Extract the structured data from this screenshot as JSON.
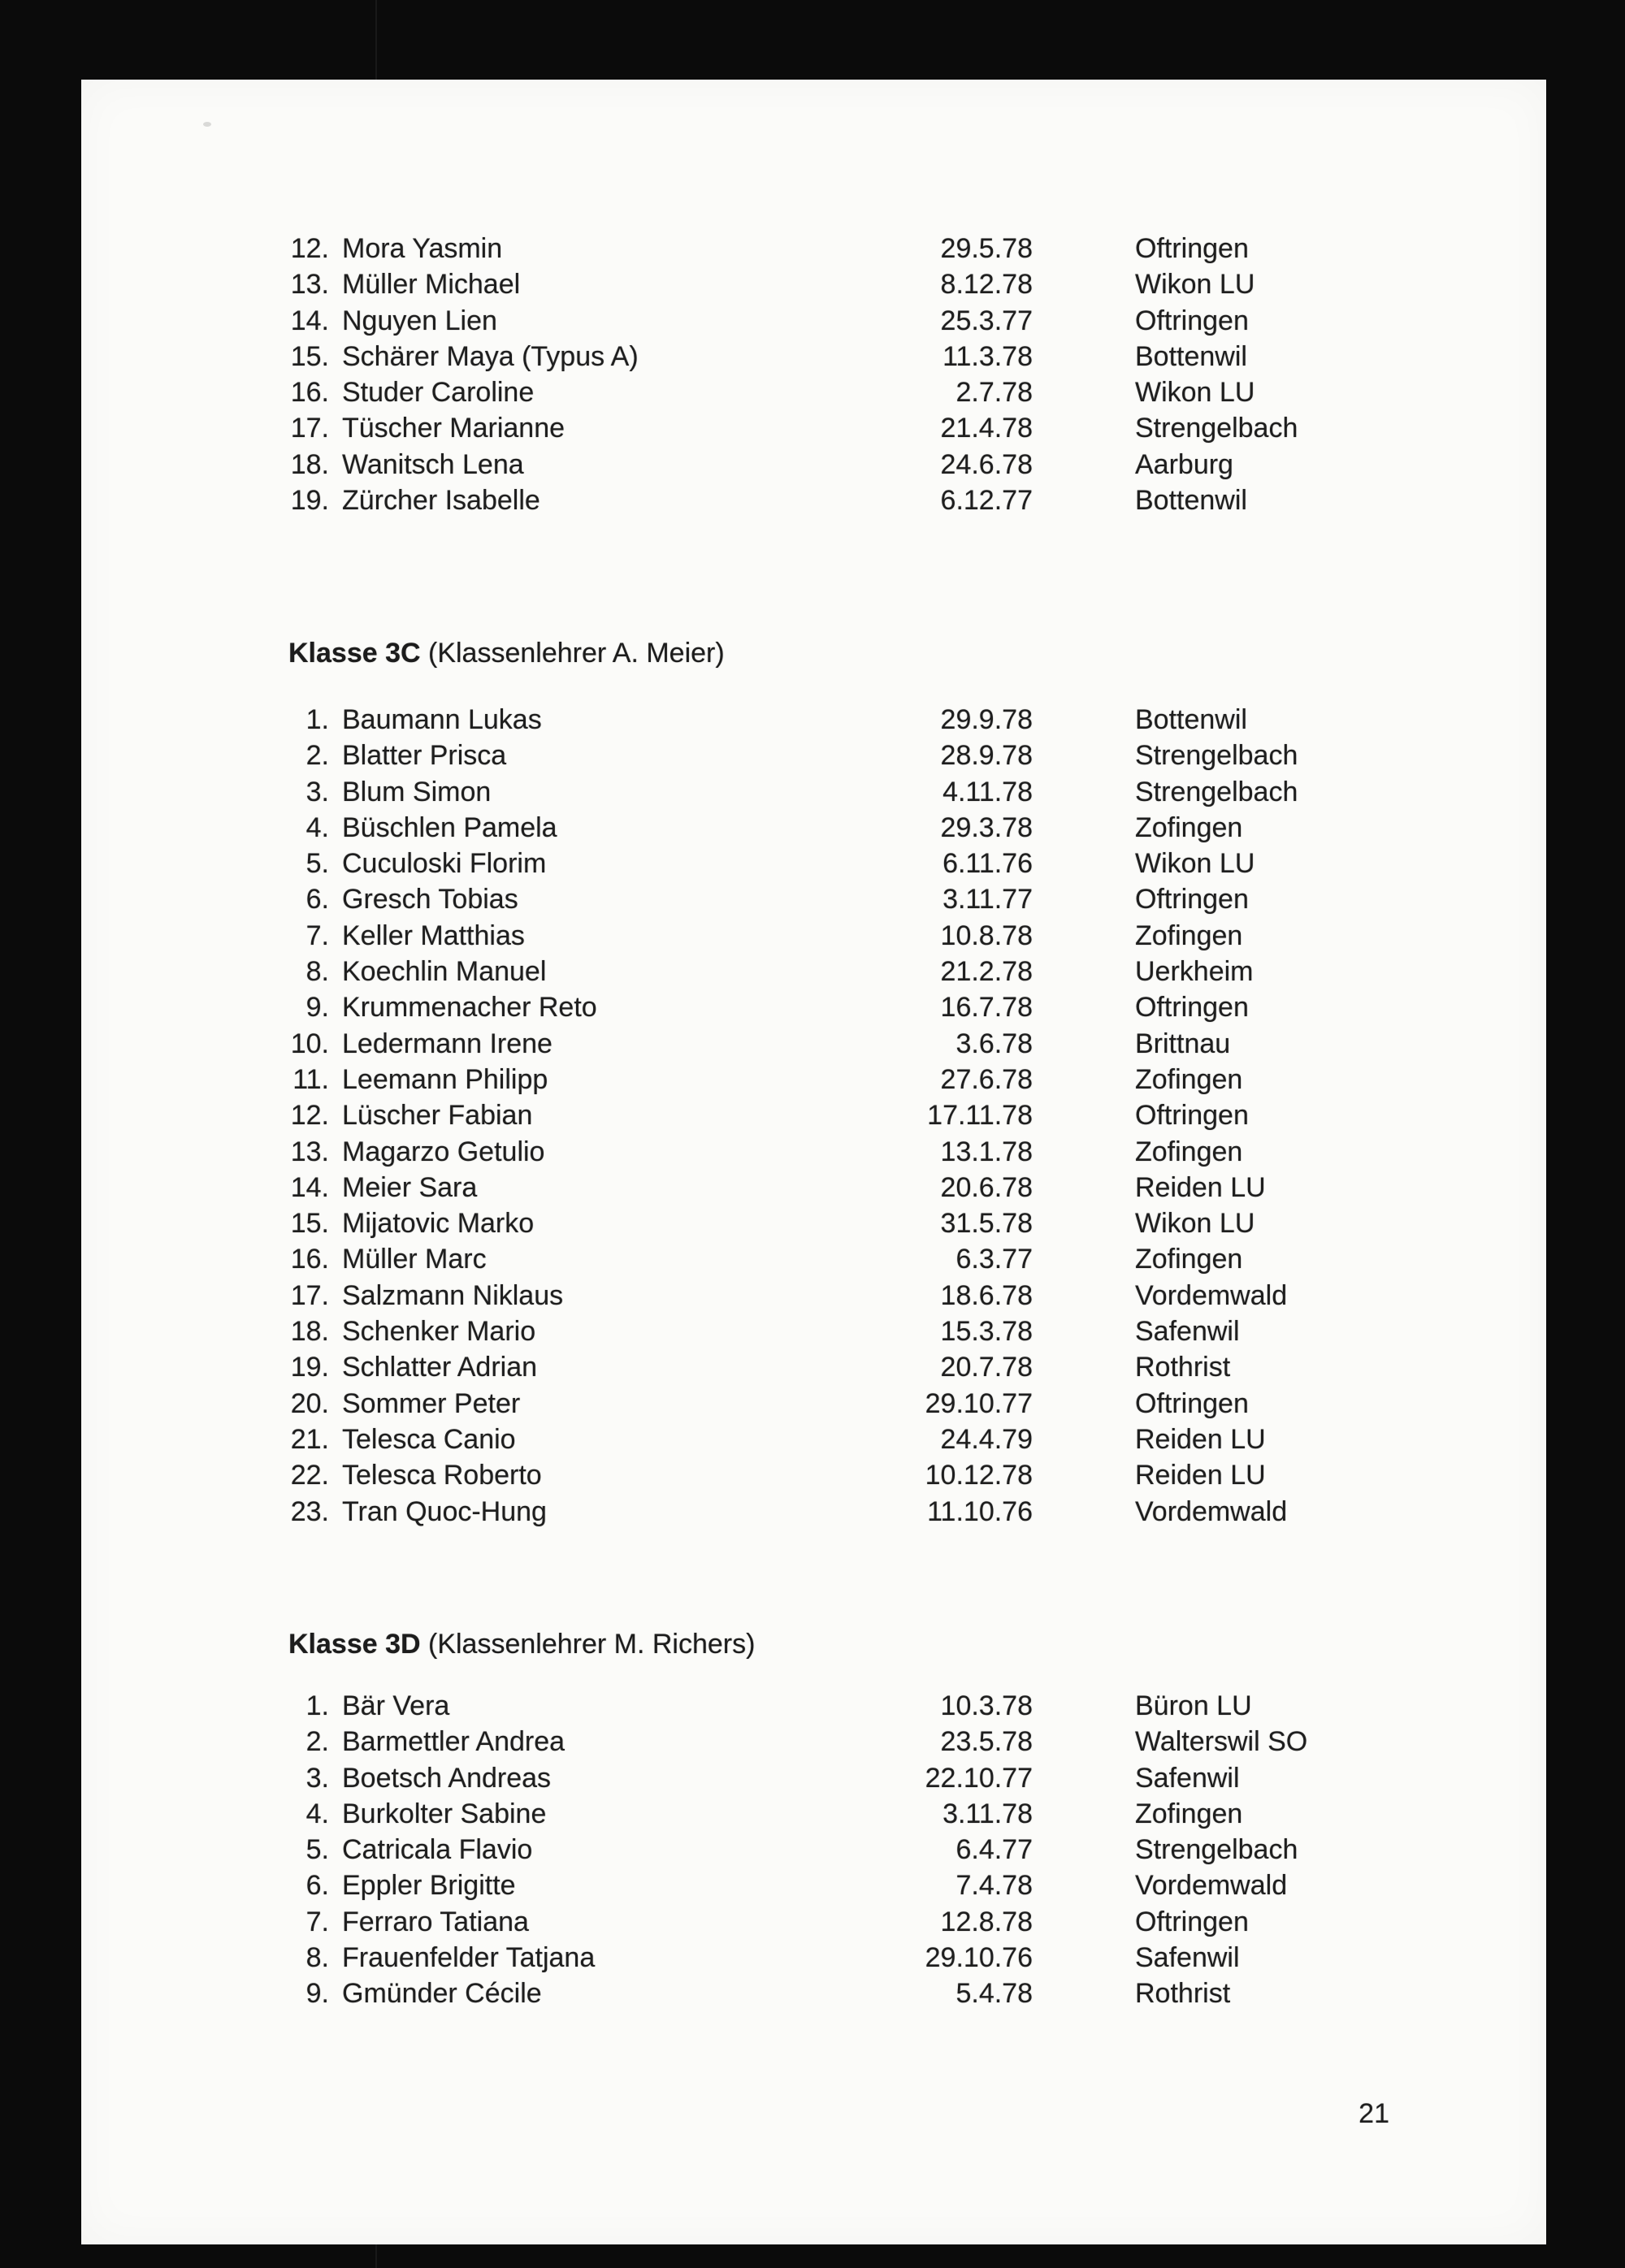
{
  "document": {
    "page_number": "21"
  },
  "sections": [
    {
      "id": "class-list-continued",
      "rows": [
        {
          "num": "12.",
          "name": "Mora Yasmin",
          "date": "29.5.78",
          "town": "Oftringen"
        },
        {
          "num": "13.",
          "name": "Müller Michael",
          "date": "8.12.78",
          "town": "Wikon LU"
        },
        {
          "num": "14.",
          "name": "Nguyen Lien",
          "date": "25.3.77",
          "town": "Oftringen"
        },
        {
          "num": "15.",
          "name": "Schärer Maya (Typus A)",
          "date": "11.3.78",
          "town": "Bottenwil"
        },
        {
          "num": "16.",
          "name": "Studer Caroline",
          "date": "2.7.78",
          "town": "Wikon LU"
        },
        {
          "num": "17.",
          "name": "Tüscher Marianne",
          "date": "21.4.78",
          "town": "Strengelbach"
        },
        {
          "num": "18.",
          "name": "Wanitsch Lena",
          "date": "24.6.78",
          "town": "Aarburg"
        },
        {
          "num": "19.",
          "name": "Zürcher Isabelle",
          "date": "6.12.77",
          "town": "Bottenwil"
        }
      ]
    },
    {
      "id": "klasse-3c",
      "heading_bold": "Klasse 3C",
      "heading_rest": " (Klassenlehrer A. Meier)",
      "rows": [
        {
          "num": "1.",
          "name": "Baumann Lukas",
          "date": "29.9.78",
          "town": "Bottenwil"
        },
        {
          "num": "2.",
          "name": "Blatter Prisca",
          "date": "28.9.78",
          "town": "Strengelbach"
        },
        {
          "num": "3.",
          "name": "Blum Simon",
          "date": "4.11.78",
          "town": "Strengelbach"
        },
        {
          "num": "4.",
          "name": "Büschlen Pamela",
          "date": "29.3.78",
          "town": "Zofingen"
        },
        {
          "num": "5.",
          "name": "Cuculoski Florim",
          "date": "6.11.76",
          "town": "Wikon LU"
        },
        {
          "num": "6.",
          "name": "Gresch Tobias",
          "date": "3.11.77",
          "town": "Oftringen"
        },
        {
          "num": "7.",
          "name": "Keller Matthias",
          "date": "10.8.78",
          "town": "Zofingen"
        },
        {
          "num": "8.",
          "name": "Koechlin Manuel",
          "date": "21.2.78",
          "town": "Uerkheim"
        },
        {
          "num": "9.",
          "name": "Krummenacher Reto",
          "date": "16.7.78",
          "town": "Oftringen"
        },
        {
          "num": "10.",
          "name": "Ledermann Irene",
          "date": "3.6.78",
          "town": "Brittnau"
        },
        {
          "num": "11.",
          "name": "Leemann Philipp",
          "date": "27.6.78",
          "town": "Zofingen"
        },
        {
          "num": "12.",
          "name": "Lüscher Fabian",
          "date": "17.11.78",
          "town": "Oftringen"
        },
        {
          "num": "13.",
          "name": "Magarzo Getulio",
          "date": "13.1.78",
          "town": "Zofingen"
        },
        {
          "num": "14.",
          "name": "Meier Sara",
          "date": "20.6.78",
          "town": "Reiden LU"
        },
        {
          "num": "15.",
          "name": "Mijatovic Marko",
          "date": "31.5.78",
          "town": "Wikon LU"
        },
        {
          "num": "16.",
          "name": "Müller Marc",
          "date": "6.3.77",
          "town": "Zofingen"
        },
        {
          "num": "17.",
          "name": "Salzmann Niklaus",
          "date": "18.6.78",
          "town": "Vordemwald"
        },
        {
          "num": "18.",
          "name": "Schenker Mario",
          "date": "15.3.78",
          "town": "Safenwil"
        },
        {
          "num": "19.",
          "name": "Schlatter Adrian",
          "date": "20.7.78",
          "town": "Rothrist"
        },
        {
          "num": "20.",
          "name": "Sommer Peter",
          "date": "29.10.77",
          "town": "Oftringen"
        },
        {
          "num": "21.",
          "name": "Telesca Canio",
          "date": "24.4.79",
          "town": "Reiden LU"
        },
        {
          "num": "22.",
          "name": "Telesca Roberto",
          "date": "10.12.78",
          "town": "Reiden LU"
        },
        {
          "num": "23.",
          "name": "Tran Quoc-Hung",
          "date": "11.10.76",
          "town": "Vordemwald"
        }
      ]
    },
    {
      "id": "klasse-3d",
      "heading_bold": "Klasse 3D",
      "heading_rest": " (Klassenlehrer M. Richers)",
      "rows": [
        {
          "num": "1.",
          "name": "Bär Vera",
          "date": "10.3.78",
          "town": "Büron LU"
        },
        {
          "num": "2.",
          "name": "Barmettler Andrea",
          "date": "23.5.78",
          "town": "Walterswil SO"
        },
        {
          "num": "3.",
          "name": "Boetsch Andreas",
          "date": "22.10.77",
          "town": "Safenwil"
        },
        {
          "num": "4.",
          "name": "Burkolter Sabine",
          "date": "3.11.78",
          "town": "Zofingen"
        },
        {
          "num": "5.",
          "name": "Catricala Flavio",
          "date": "6.4.77",
          "town": "Strengelbach"
        },
        {
          "num": "6.",
          "name": "Eppler Brigitte",
          "date": "7.4.78",
          "town": "Vordemwald"
        },
        {
          "num": "7.",
          "name": "Ferraro Tatiana",
          "date": "12.8.78",
          "town": "Oftringen"
        },
        {
          "num": "8.",
          "name": "Frauenfelder Tatjana",
          "date": "29.10.76",
          "town": "Safenwil"
        },
        {
          "num": "9.",
          "name": "Gmünder Cécile",
          "date": "5.4.78",
          "town": "Rothrist"
        }
      ]
    }
  ]
}
